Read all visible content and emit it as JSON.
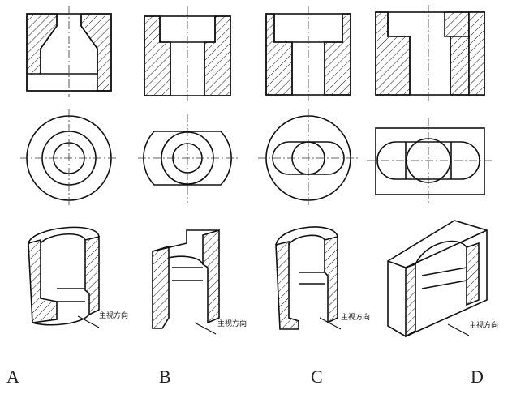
{
  "options": [
    {
      "letter": "A",
      "view_direction_label": "主视方向"
    },
    {
      "letter": "B",
      "view_direction_label": "主视方向"
    },
    {
      "letter": "C",
      "view_direction_label": "主视方向"
    },
    {
      "letter": "D",
      "view_direction_label": "主视方向"
    }
  ]
}
